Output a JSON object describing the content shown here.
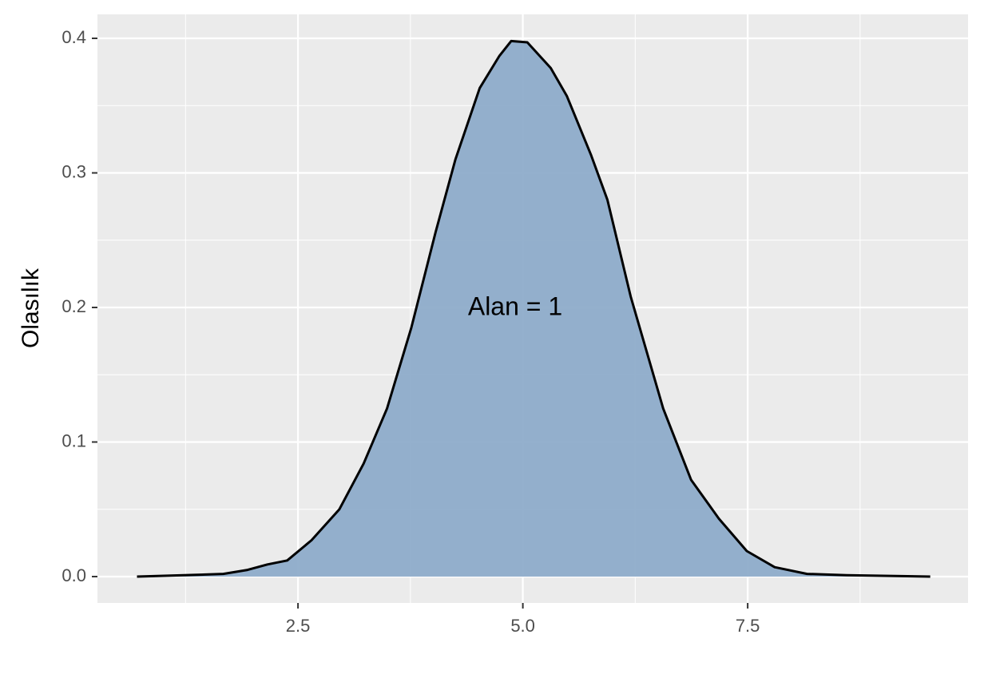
{
  "chart_data": {
    "type": "area",
    "y_label": "Olasılık",
    "annotation": "Alan = 1",
    "x": [
      0.71,
      1.23,
      1.67,
      1.94,
      2.16,
      2.38,
      2.65,
      2.96,
      3.23,
      3.49,
      3.76,
      4.03,
      4.25,
      4.52,
      4.74,
      4.87,
      5.05,
      5.31,
      5.49,
      5.76,
      5.94,
      6.2,
      6.56,
      6.87,
      7.18,
      7.49,
      7.8,
      8.16,
      8.6,
      9.53
    ],
    "values": [
      0.0,
      0.001,
      0.002,
      0.005,
      0.009,
      0.012,
      0.027,
      0.05,
      0.084,
      0.125,
      0.185,
      0.256,
      0.31,
      0.363,
      0.387,
      0.398,
      0.397,
      0.378,
      0.357,
      0.313,
      0.28,
      0.208,
      0.125,
      0.072,
      0.043,
      0.019,
      0.007,
      0.002,
      0.001,
      0.0
    ],
    "color": "#8eacca",
    "line_color": "#000000",
    "xlim": [
      0.27,
      9.95
    ],
    "ylim": [
      -0.0196,
      0.4178
    ],
    "xticks": [
      2.5,
      {
        "value": 5.0,
        "label": "5.0"
      },
      7.5
    ],
    "yticks": [
      {
        "value": 0,
        "label": "0.0"
      },
      {
        "value": 0.1,
        "label": "0.1"
      },
      {
        "value": 0.2,
        "label": "0.2"
      },
      {
        "value": 0.3,
        "label": "0.3"
      },
      {
        "value": 0.4,
        "label": "0.4"
      }
    ],
    "x_minor_grid": [
      1.25,
      3.75,
      6.25,
      8.75
    ],
    "y_minor_grid": [
      0.05,
      0.15,
      0.25,
      0.35
    ],
    "grid": true
  }
}
